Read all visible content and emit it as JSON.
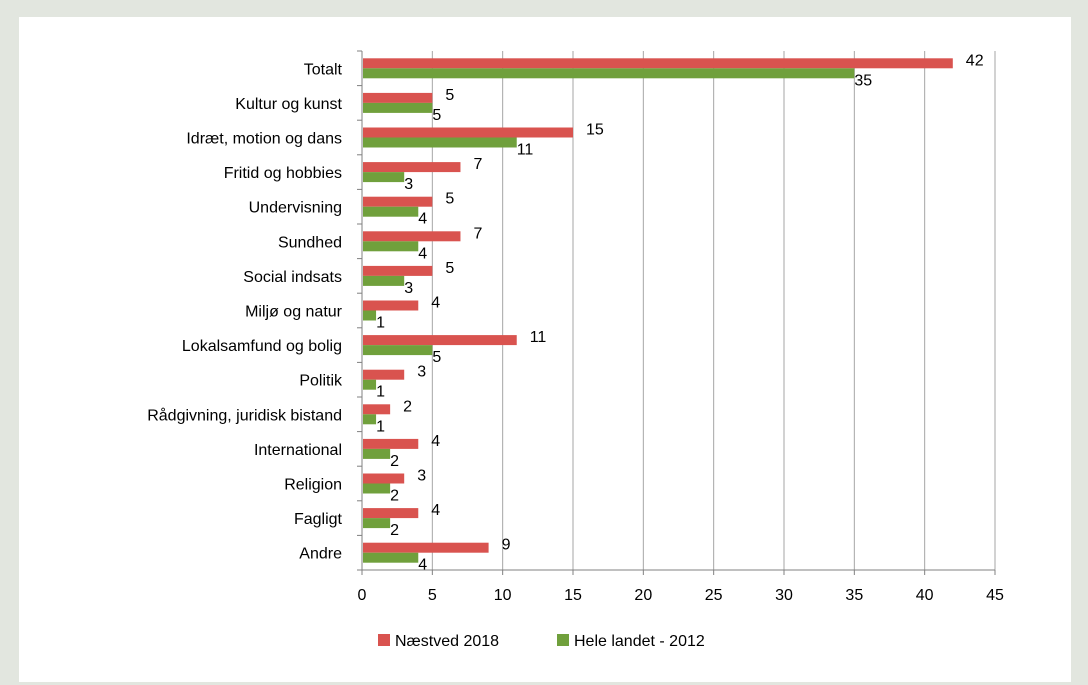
{
  "chart_data": {
    "type": "bar",
    "orientation": "horizontal",
    "categories": [
      "Totalt",
      "Kultur og kunst",
      "Idræt, motion og dans",
      "Fritid og hobbies",
      "Undervisning",
      "Sundhed",
      "Social indsats",
      "Miljø og natur",
      "Lokalsamfund og bolig",
      "Politik",
      "Rådgivning, juridisk bistand",
      "International",
      "Religion",
      "Fagligt",
      "Andre"
    ],
    "series": [
      {
        "name": "Næstved 2018",
        "color": "#d9534f",
        "values": [
          42,
          5,
          15,
          7,
          5,
          7,
          5,
          4,
          11,
          3,
          2,
          4,
          3,
          4,
          9
        ]
      },
      {
        "name": "Hele landet - 2012",
        "color": "#70a03c",
        "values": [
          35,
          5,
          11,
          3,
          4,
          4,
          3,
          1,
          5,
          1,
          1,
          2,
          2,
          2,
          4
        ]
      }
    ],
    "xlim": [
      0,
      45
    ],
    "xticks": [
      0,
      5,
      10,
      15,
      20,
      25,
      30,
      35,
      40,
      45
    ],
    "grid": "vertical",
    "legend_position": "bottom"
  }
}
